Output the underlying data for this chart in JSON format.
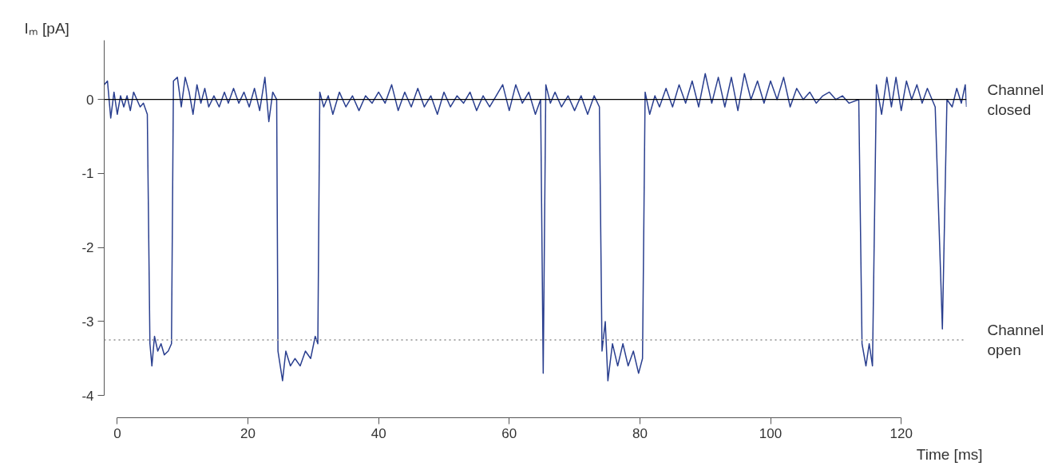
{
  "chart_data": {
    "type": "line",
    "xlabel": "Time [ms]",
    "ylabel": "Iₘ [pA]",
    "xlim": [
      -2,
      130
    ],
    "ylim": [
      -4.3,
      0.8
    ],
    "xticks": [
      0,
      20,
      40,
      60,
      80,
      100,
      120
    ],
    "yticks": [
      0,
      -1,
      -2,
      -3,
      -4
    ],
    "grid": false,
    "marker": "none",
    "line_style": "solid",
    "ref_lines": [
      {
        "axis": "y",
        "value": 0,
        "label": "Channel closed",
        "color": "#000000",
        "line_style": "solid"
      },
      {
        "axis": "y",
        "value": -3.25,
        "label": "Channel open",
        "color": "#aaaaaa",
        "line_style": "dotted"
      }
    ],
    "series": [
      {
        "color": "#2a3f8f",
        "x": [
          -2,
          -1.5,
          -1,
          -0.5,
          0,
          0.5,
          1,
          1.5,
          2,
          2.5,
          3,
          3.5,
          4,
          4.6,
          5.0,
          5.3,
          5.7,
          6.2,
          6.7,
          7.2,
          7.8,
          8.3,
          8.6,
          9.2,
          9.8,
          10.4,
          11,
          11.6,
          12.2,
          12.8,
          13.4,
          14,
          14.8,
          15.6,
          16.4,
          17,
          17.8,
          18.6,
          19.4,
          20.2,
          21,
          21.8,
          22.6,
          23.2,
          23.8,
          24.4,
          24.6,
          25.3,
          25.8,
          26.5,
          27.2,
          28,
          28.8,
          29.6,
          30.3,
          30.7,
          31.0,
          31.6,
          32.3,
          33,
          34,
          35,
          36,
          37,
          38,
          39,
          40,
          41,
          42,
          43,
          44,
          45,
          46,
          47,
          48,
          49,
          50,
          51,
          52,
          53,
          54,
          55,
          56,
          57,
          58,
          59,
          60,
          61,
          62,
          63,
          64,
          64.8,
          65.2,
          65.6,
          66.3,
          67,
          68,
          69,
          70,
          71,
          72,
          73,
          73.8,
          74.2,
          74.7,
          75.1,
          75.8,
          76.6,
          77.4,
          78.2,
          79,
          79.8,
          80.4,
          80.8,
          81.5,
          82.3,
          83,
          84,
          85,
          86,
          87,
          88,
          89,
          90,
          91,
          92,
          93,
          94,
          95,
          96,
          97,
          98,
          99,
          100,
          101,
          102,
          103,
          104,
          105,
          106,
          107,
          108,
          109,
          110,
          111,
          112,
          113.5,
          114,
          114.6,
          115.1,
          115.6,
          116.2,
          117,
          117.8,
          118.5,
          119.2,
          120,
          120.8,
          121.6,
          122.4,
          123.2,
          124,
          125.2,
          126.3,
          127,
          127.8,
          128.5,
          129.2,
          129.8,
          130
        ],
        "values": [
          0.2,
          0.25,
          -0.25,
          0.1,
          -0.2,
          0.05,
          -0.1,
          0.05,
          -0.15,
          0.1,
          0.0,
          -0.1,
          -0.05,
          -0.2,
          -3.3,
          -3.6,
          -3.2,
          -3.4,
          -3.3,
          -3.45,
          -3.4,
          -3.3,
          0.25,
          0.3,
          -0.1,
          0.3,
          0.1,
          -0.2,
          0.2,
          -0.05,
          0.15,
          -0.1,
          0.05,
          -0.1,
          0.1,
          -0.05,
          0.15,
          -0.05,
          0.1,
          -0.1,
          0.15,
          -0.15,
          0.3,
          -0.3,
          0.1,
          0.0,
          -3.4,
          -3.8,
          -3.4,
          -3.6,
          -3.5,
          -3.6,
          -3.4,
          -3.5,
          -3.2,
          -3.3,
          0.1,
          -0.1,
          0.05,
          -0.2,
          0.1,
          -0.1,
          0.05,
          -0.15,
          0.05,
          -0.05,
          0.1,
          -0.05,
          0.2,
          -0.15,
          0.1,
          -0.1,
          0.15,
          -0.1,
          0.05,
          -0.2,
          0.1,
          -0.1,
          0.05,
          -0.05,
          0.1,
          -0.15,
          0.05,
          -0.1,
          0.05,
          0.2,
          -0.15,
          0.2,
          -0.05,
          0.1,
          -0.2,
          0.0,
          -3.7,
          0.2,
          -0.05,
          0.1,
          -0.1,
          0.05,
          -0.15,
          0.05,
          -0.2,
          0.05,
          -0.1,
          -3.4,
          -3.0,
          -3.8,
          -3.3,
          -3.6,
          -3.3,
          -3.6,
          -3.4,
          -3.7,
          -3.5,
          0.1,
          -0.2,
          0.05,
          -0.1,
          0.15,
          -0.1,
          0.2,
          -0.05,
          0.25,
          -0.1,
          0.35,
          -0.05,
          0.3,
          -0.1,
          0.3,
          -0.15,
          0.35,
          0.0,
          0.25,
          -0.05,
          0.25,
          0.0,
          0.3,
          -0.1,
          0.15,
          0.0,
          0.1,
          -0.05,
          0.05,
          0.1,
          0.0,
          0.05,
          -0.05,
          0.0,
          -3.3,
          -3.6,
          -3.3,
          -3.6,
          0.2,
          -0.2,
          0.3,
          -0.1,
          0.3,
          -0.15,
          0.25,
          0.0,
          0.2,
          -0.05,
          0.15,
          -0.1,
          -3.1,
          0.0,
          -0.1,
          0.15,
          -0.05,
          0.2,
          -0.1
        ]
      }
    ]
  }
}
